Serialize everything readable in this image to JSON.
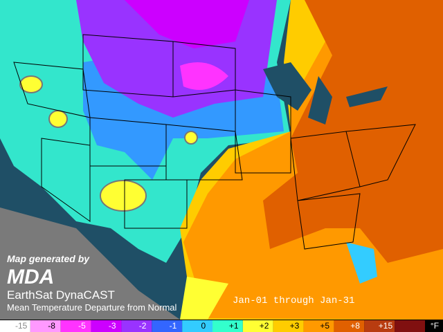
{
  "branding": {
    "generated_by": "Map generated by",
    "logo": "MDA",
    "product": "EarthSat DynaCAST",
    "description": "Mean Temperature Departure from Normal"
  },
  "period": "Jan-01 through Jan-31",
  "legend": {
    "unit": "°F",
    "items": [
      {
        "label": "-15",
        "color": "#ffffff"
      },
      {
        "label": "-8",
        "color": "#ff99ff"
      },
      {
        "label": "-5",
        "color": "#ff33ff"
      },
      {
        "label": "-3",
        "color": "#cc00ff"
      },
      {
        "label": "-2",
        "color": "#9933ff"
      },
      {
        "label": "-1",
        "color": "#3366ff"
      },
      {
        "label": "0",
        "color": "#33ccff"
      },
      {
        "label": "+1",
        "color": "#33ffcc"
      },
      {
        "label": "+2",
        "color": "#ffff33"
      },
      {
        "label": "+3",
        "color": "#ffcc00"
      },
      {
        "label": "+5",
        "color": "#ff9900"
      },
      {
        "label": "+8",
        "color": "#e06000"
      },
      {
        "label": "+15",
        "color": "#b83c10"
      },
      {
        "label": "",
        "color": "#801010"
      }
    ]
  }
}
